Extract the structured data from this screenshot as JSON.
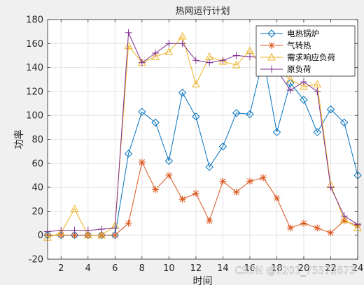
{
  "chart_data": {
    "type": "line",
    "title": "热网运行计划",
    "xlabel": "时间",
    "ylabel": "功率",
    "xlim": [
      1,
      24
    ],
    "ylim": [
      -20,
      180
    ],
    "xticks": [
      2,
      4,
      6,
      8,
      10,
      12,
      14,
      16,
      18,
      20,
      22,
      24
    ],
    "yticks": [
      -20,
      0,
      20,
      40,
      60,
      80,
      100,
      120,
      140,
      160,
      180
    ],
    "grid": true,
    "legend_position": "top-right",
    "x": [
      1,
      2,
      3,
      4,
      5,
      6,
      7,
      8,
      9,
      10,
      11,
      12,
      13,
      14,
      15,
      16,
      17,
      18,
      19,
      20,
      21,
      22,
      23,
      24
    ],
    "series": [
      {
        "name": "电热锅炉",
        "color": "#0072BD",
        "marker": "diamond",
        "values": [
          0,
          0,
          0,
          0,
          0,
          0,
          68,
          103,
          94,
          62,
          119,
          99,
          57,
          74,
          102,
          101,
          148,
          86,
          127,
          113,
          86,
          105,
          94,
          50
        ]
      },
      {
        "name": "气转热",
        "color": "#D95319",
        "marker": "asterisk",
        "values": [
          0,
          0,
          0,
          0,
          0,
          0,
          10,
          61,
          38,
          50,
          30,
          35,
          12,
          45,
          36,
          45,
          48,
          31,
          6,
          10,
          6,
          2,
          12,
          8
        ]
      },
      {
        "name": "需求响应负荷",
        "color": "#EDB120",
        "marker": "triangle",
        "values": [
          -2,
          2,
          22,
          0,
          0,
          8,
          158,
          144,
          149,
          153,
          166,
          126,
          149,
          145,
          142,
          154,
          140,
          138,
          130,
          124,
          126,
          42,
          13,
          6
        ]
      },
      {
        "name": "原负荷",
        "color": "#7E2F8E",
        "marker": "plus",
        "values": [
          3,
          4,
          4,
          4,
          5,
          6,
          169,
          144,
          152,
          160,
          160,
          146,
          144,
          146,
          150,
          149,
          148,
          138,
          121,
          128,
          120,
          40,
          16,
          9
        ]
      }
    ]
  },
  "watermark": "CSDN @2201_75572673"
}
